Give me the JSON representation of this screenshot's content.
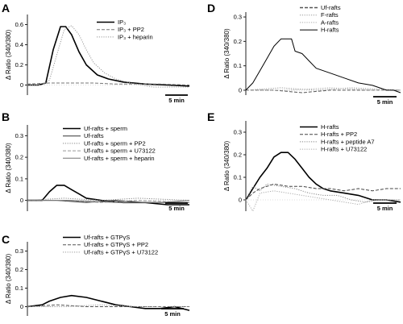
{
  "chart_data": [
    {
      "panel": "A",
      "type": "line",
      "ylabel": "Δ Ratio (340/380)",
      "ylim": [
        -0.1,
        0.7
      ],
      "yticks": [
        0,
        0.2,
        0.4,
        0.6
      ],
      "ytick_labels": [
        "0",
        "0.2",
        "0.4",
        "0.6"
      ],
      "xlim": [
        0,
        22
      ],
      "scale_bar": "5 min",
      "legend_position": "top-right",
      "series": [
        {
          "name": "IP₃",
          "style": "solid",
          "color": "#000000",
          "points": [
            [
              0,
              0
            ],
            [
              1.5,
              0
            ],
            [
              2.5,
              0.02
            ],
            [
              3.5,
              0.35
            ],
            [
              4.5,
              0.58
            ],
            [
              5.2,
              0.58
            ],
            [
              6,
              0.5
            ],
            [
              7,
              0.33
            ],
            [
              8,
              0.2
            ],
            [
              9.5,
              0.1
            ],
            [
              11,
              0.06
            ],
            [
              13,
              0.03
            ],
            [
              16,
              0.01
            ],
            [
              19,
              0
            ],
            [
              22,
              -0.01
            ]
          ]
        },
        {
          "name": "IP₃ + PP2",
          "style": "dashed",
          "color": "#777777",
          "points": [
            [
              0,
              0.01
            ],
            [
              3,
              0.02
            ],
            [
              6,
              0.02
            ],
            [
              9,
              0.02
            ],
            [
              12,
              0.01
            ],
            [
              15,
              0.01
            ],
            [
              18,
              0.01
            ],
            [
              22,
              0
            ]
          ]
        },
        {
          "name": "IP₃ + heparin",
          "style": "dotted",
          "color": "#999999",
          "points": [
            [
              0,
              0
            ],
            [
              2,
              0
            ],
            [
              3,
              0.05
            ],
            [
              4,
              0.3
            ],
            [
              5,
              0.55
            ],
            [
              6,
              0.59
            ],
            [
              7,
              0.5
            ],
            [
              8,
              0.35
            ],
            [
              9,
              0.22
            ],
            [
              10.5,
              0.12
            ],
            [
              12,
              0.06
            ],
            [
              14,
              0.02
            ],
            [
              17,
              -0.02
            ],
            [
              22,
              -0.02
            ]
          ]
        }
      ]
    },
    {
      "panel": "B",
      "type": "line",
      "ylabel": "Δ Ratio (340/380)",
      "ylim": [
        -0.05,
        0.35
      ],
      "yticks": [
        0,
        0.1,
        0.2,
        0.3
      ],
      "ytick_labels": [
        "0",
        "0.1",
        "0.2",
        "0.3"
      ],
      "xlim": [
        0,
        22
      ],
      "scale_bar": "5 min",
      "legend_position": "top-right",
      "series": [
        {
          "name": "Uf-rafts + sperm",
          "style": "solid",
          "color": "#000000",
          "points": [
            [
              0,
              0
            ],
            [
              2,
              0
            ],
            [
              3,
              0.04
            ],
            [
              4,
              0.07
            ],
            [
              5,
              0.07
            ],
            [
              6,
              0.05
            ],
            [
              7,
              0.03
            ],
            [
              8,
              0.01
            ],
            [
              10,
              0
            ],
            [
              13,
              -0.01
            ],
            [
              16,
              -0.01
            ],
            [
              19,
              -0.02
            ],
            [
              22,
              -0.02
            ]
          ]
        },
        {
          "name": "Uf-rafts",
          "style": "solid",
          "color": "#333333",
          "points": [
            [
              0,
              0
            ],
            [
              4,
              0
            ],
            [
              8,
              -0.01
            ],
            [
              12,
              0
            ],
            [
              16,
              -0.01
            ],
            [
              22,
              -0.01
            ]
          ]
        },
        {
          "name": "Uf-rafts + sperm + PP2",
          "style": "dotted",
          "color": "#888888",
          "points": [
            [
              0,
              0
            ],
            [
              5,
              0.01
            ],
            [
              10,
              0
            ],
            [
              15,
              0.01
            ],
            [
              22,
              0
            ]
          ]
        },
        {
          "name": "Uf-rafts + sperm + U73122",
          "style": "dashed",
          "color": "#999999",
          "points": [
            [
              0,
              0
            ],
            [
              5,
              0
            ],
            [
              10,
              -0.01
            ],
            [
              15,
              0
            ],
            [
              22,
              -0.01
            ]
          ]
        },
        {
          "name": "Uf-rafts + sperm + heparin",
          "style": "solid",
          "color": "#777777",
          "points": [
            [
              0,
              0
            ],
            [
              6,
              0
            ],
            [
              12,
              -0.01
            ],
            [
              18,
              -0.01
            ],
            [
              22,
              0
            ]
          ]
        }
      ]
    },
    {
      "panel": "C",
      "type": "line",
      "ylabel": "Δ Ratio (340/380)",
      "ylim": [
        -0.05,
        0.35
      ],
      "yticks": [
        0,
        0.1,
        0.2,
        0.3
      ],
      "ytick_labels": [
        "0",
        "0.1",
        "0.2",
        "0.3"
      ],
      "xlim": [
        0,
        22
      ],
      "scale_bar": "5 min",
      "legend_position": "top-right",
      "series": [
        {
          "name": "Uf-rafts + GTPγS",
          "style": "solid",
          "color": "#000000",
          "points": [
            [
              0,
              0
            ],
            [
              2,
              0.01
            ],
            [
              3,
              0.03
            ],
            [
              4.5,
              0.05
            ],
            [
              6,
              0.06
            ],
            [
              8,
              0.05
            ],
            [
              10,
              0.03
            ],
            [
              12,
              0.01
            ],
            [
              14,
              0
            ],
            [
              16,
              -0.01
            ],
            [
              18,
              -0.01
            ],
            [
              20,
              0
            ],
            [
              22,
              -0.02
            ]
          ]
        },
        {
          "name": "Uf-rafts + GTPγS + PP2",
          "style": "dashed",
          "color": "#555555",
          "points": [
            [
              0,
              0
            ],
            [
              4,
              0.01
            ],
            [
              8,
              0
            ],
            [
              12,
              0
            ],
            [
              16,
              0
            ],
            [
              22,
              0
            ]
          ]
        },
        {
          "name": "Uf-rafts + GTPγS + U73122",
          "style": "dotted",
          "color": "#999999",
          "points": [
            [
              0,
              0
            ],
            [
              5,
              0
            ],
            [
              10,
              0.01
            ],
            [
              15,
              0
            ],
            [
              22,
              0
            ]
          ]
        }
      ]
    },
    {
      "panel": "D",
      "type": "line",
      "ylabel": "Δ Ratio (340/380)",
      "ylim": [
        -0.02,
        0.32
      ],
      "yticks": [
        0,
        0.1,
        0.2,
        0.3
      ],
      "ytick_labels": [
        "0",
        "0.1",
        "0.2",
        "0.3"
      ],
      "xlim": [
        0,
        22
      ],
      "scale_bar": "5 min",
      "legend_position": "top-right",
      "series": [
        {
          "name": "Uf-rafts",
          "style": "dashed",
          "color": "#555555",
          "points": [
            [
              0,
              0
            ],
            [
              4,
              0
            ],
            [
              8,
              -0.01
            ],
            [
              12,
              0
            ],
            [
              16,
              0
            ],
            [
              22,
              0
            ]
          ]
        },
        {
          "name": "F-rafts",
          "style": "dotted",
          "color": "#999999",
          "points": [
            [
              0,
              0
            ],
            [
              5,
              0.01
            ],
            [
              10,
              0
            ],
            [
              15,
              0.01
            ],
            [
              22,
              0
            ]
          ]
        },
        {
          "name": "A-rafts",
          "style": "dotted",
          "color": "#aaaaaa",
          "points": [
            [
              0,
              0
            ],
            [
              6,
              0
            ],
            [
              12,
              0.01
            ],
            [
              18,
              0
            ],
            [
              22,
              0
            ]
          ]
        },
        {
          "name": "H-rafts",
          "style": "solid",
          "color": "#000000",
          "points": [
            [
              0,
              0
            ],
            [
              1,
              0.03
            ],
            [
              2,
              0.08
            ],
            [
              3,
              0.13
            ],
            [
              4,
              0.18
            ],
            [
              5,
              0.21
            ],
            [
              6.5,
              0.21
            ],
            [
              7,
              0.16
            ],
            [
              8,
              0.15
            ],
            [
              9,
              0.12
            ],
            [
              10,
              0.09
            ],
            [
              11,
              0.08
            ],
            [
              12,
              0.07
            ],
            [
              14,
              0.05
            ],
            [
              16,
              0.03
            ],
            [
              18,
              0.02
            ],
            [
              19,
              0.01
            ],
            [
              20,
              0
            ],
            [
              21,
              0
            ],
            [
              22,
              -0.01
            ]
          ]
        }
      ]
    },
    {
      "panel": "E",
      "type": "line",
      "ylabel": "Δ Ratio (340/380)",
      "ylim": [
        -0.05,
        0.35
      ],
      "yticks": [
        0,
        0.1,
        0.2,
        0.3
      ],
      "ytick_labels": [
        "0",
        "0.1",
        "0.2",
        "0.3"
      ],
      "xlim": [
        0,
        22
      ],
      "scale_bar": "5 min",
      "legend_position": "top-right",
      "series": [
        {
          "name": "H-rafts",
          "style": "solid",
          "color": "#000000",
          "points": [
            [
              0,
              0
            ],
            [
              1,
              0.05
            ],
            [
              2,
              0.1
            ],
            [
              3,
              0.14
            ],
            [
              4,
              0.19
            ],
            [
              5,
              0.21
            ],
            [
              6,
              0.21
            ],
            [
              7,
              0.18
            ],
            [
              8,
              0.14
            ],
            [
              9,
              0.1
            ],
            [
              10,
              0.07
            ],
            [
              11,
              0.05
            ],
            [
              12,
              0.04
            ],
            [
              14,
              0.03
            ],
            [
              16,
              0.02
            ],
            [
              18,
              0
            ],
            [
              20,
              0
            ],
            [
              22,
              -0.01
            ]
          ]
        },
        {
          "name": "H-rafts + PP2",
          "style": "dashed",
          "color": "#444444",
          "points": [
            [
              0,
              0
            ],
            [
              1,
              0.03
            ],
            [
              2,
              0.05
            ],
            [
              4,
              0.07
            ],
            [
              6,
              0.06
            ],
            [
              8,
              0.06
            ],
            [
              10,
              0.05
            ],
            [
              12,
              0.05
            ],
            [
              14,
              0.04
            ],
            [
              16,
              0.05
            ],
            [
              18,
              0.04
            ],
            [
              20,
              0.05
            ],
            [
              22,
              0.05
            ]
          ]
        },
        {
          "name": "H-rafts + peptide A7",
          "style": "dotted",
          "color": "#888888",
          "points": [
            [
              0,
              0
            ],
            [
              1,
              0.06
            ],
            [
              2,
              0.04
            ],
            [
              3,
              0.07
            ],
            [
              5,
              0.06
            ],
            [
              7,
              0.05
            ],
            [
              9,
              0.03
            ],
            [
              11,
              0.02
            ],
            [
              13,
              0.02
            ],
            [
              15,
              0
            ],
            [
              17,
              -0.01
            ],
            [
              19,
              0
            ],
            [
              22,
              0
            ]
          ]
        },
        {
          "name": "H-rafts + U73122",
          "style": "dotted",
          "color": "#aaaaaa",
          "points": [
            [
              0,
              0
            ],
            [
              1,
              -0.05
            ],
            [
              2,
              0.03
            ],
            [
              4,
              0.04
            ],
            [
              6,
              0.03
            ],
            [
              8,
              0.02
            ],
            [
              10,
              0.01
            ],
            [
              12,
              0
            ],
            [
              14,
              -0.01
            ],
            [
              16,
              -0.02
            ],
            [
              18,
              0
            ],
            [
              20,
              0
            ],
            [
              22,
              0
            ]
          ]
        }
      ]
    }
  ]
}
